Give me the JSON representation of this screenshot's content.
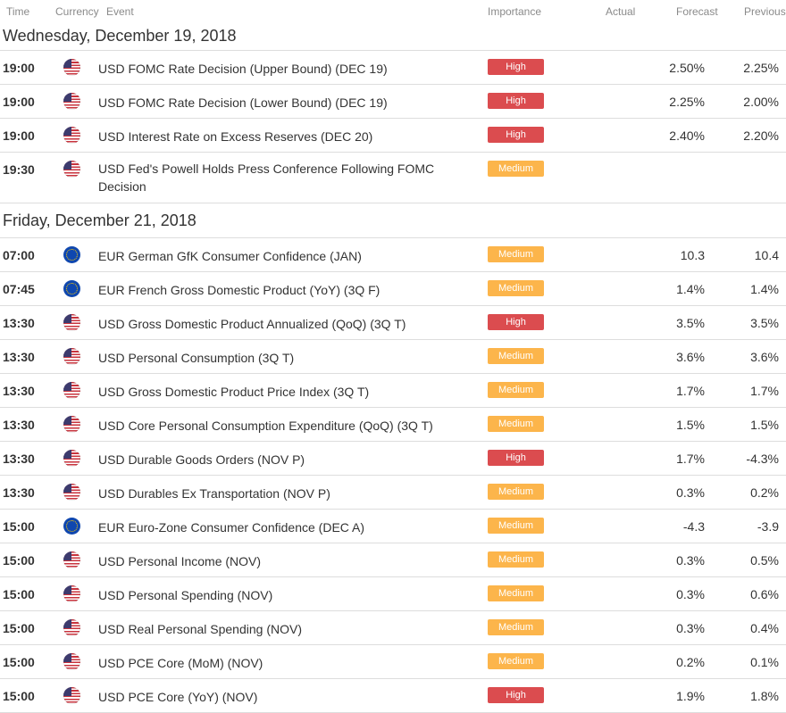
{
  "header": {
    "time": "Time",
    "currency": "Currency",
    "event": "Event",
    "importance": "Importance",
    "actual": "Actual",
    "forecast": "Forecast",
    "previous": "Previous"
  },
  "colors": {
    "high": "#db4c4f",
    "medium": "#fcb54b"
  },
  "days": [
    {
      "heading": "Wednesday, December 19, 2018",
      "events": [
        {
          "time": "19:00",
          "flag_icon": "us-flag-icon",
          "event": "USD FOMC Rate Decision (Upper Bound) (DEC 19)",
          "importance": "High",
          "actual": "",
          "forecast": "2.50%",
          "previous": "2.25%"
        },
        {
          "time": "19:00",
          "flag_icon": "us-flag-icon",
          "event": "USD FOMC Rate Decision (Lower Bound) (DEC 19)",
          "importance": "High",
          "actual": "",
          "forecast": "2.25%",
          "previous": "2.00%"
        },
        {
          "time": "19:00",
          "flag_icon": "us-flag-icon",
          "event": "USD Interest Rate on Excess Reserves (DEC 20)",
          "importance": "High",
          "actual": "",
          "forecast": "2.40%",
          "previous": "2.20%"
        },
        {
          "time": "19:30",
          "flag_icon": "us-flag-icon",
          "event": "USD Fed's Powell Holds Press Conference Following FOMC Decision",
          "importance": "Medium",
          "actual": "",
          "forecast": "",
          "previous": ""
        }
      ]
    },
    {
      "heading": "Friday, December 21, 2018",
      "events": [
        {
          "time": "07:00",
          "flag_icon": "eu-flag-icon",
          "event": "EUR German GfK Consumer Confidence (JAN)",
          "importance": "Medium",
          "actual": "",
          "forecast": "10.3",
          "previous": "10.4"
        },
        {
          "time": "07:45",
          "flag_icon": "eu-flag-icon",
          "event": "EUR French Gross Domestic Product (YoY) (3Q F)",
          "importance": "Medium",
          "actual": "",
          "forecast": "1.4%",
          "previous": "1.4%"
        },
        {
          "time": "13:30",
          "flag_icon": "us-flag-icon",
          "event": "USD Gross Domestic Product Annualized (QoQ) (3Q T)",
          "importance": "High",
          "actual": "",
          "forecast": "3.5%",
          "previous": "3.5%"
        },
        {
          "time": "13:30",
          "flag_icon": "us-flag-icon",
          "event": "USD Personal Consumption (3Q T)",
          "importance": "Medium",
          "actual": "",
          "forecast": "3.6%",
          "previous": "3.6%"
        },
        {
          "time": "13:30",
          "flag_icon": "us-flag-icon",
          "event": "USD Gross Domestic Product Price Index (3Q T)",
          "importance": "Medium",
          "actual": "",
          "forecast": "1.7%",
          "previous": "1.7%"
        },
        {
          "time": "13:30",
          "flag_icon": "us-flag-icon",
          "event": "USD Core Personal Consumption Expenditure (QoQ) (3Q T)",
          "importance": "Medium",
          "actual": "",
          "forecast": "1.5%",
          "previous": "1.5%"
        },
        {
          "time": "13:30",
          "flag_icon": "us-flag-icon",
          "event": "USD Durable Goods Orders (NOV P)",
          "importance": "High",
          "actual": "",
          "forecast": "1.7%",
          "previous": "-4.3%"
        },
        {
          "time": "13:30",
          "flag_icon": "us-flag-icon",
          "event": "USD Durables Ex Transportation (NOV P)",
          "importance": "Medium",
          "actual": "",
          "forecast": "0.3%",
          "previous": "0.2%"
        },
        {
          "time": "15:00",
          "flag_icon": "eu-flag-icon",
          "event": "EUR Euro-Zone Consumer Confidence (DEC A)",
          "importance": "Medium",
          "actual": "",
          "forecast": "-4.3",
          "previous": "-3.9"
        },
        {
          "time": "15:00",
          "flag_icon": "us-flag-icon",
          "event": "USD Personal Income (NOV)",
          "importance": "Medium",
          "actual": "",
          "forecast": "0.3%",
          "previous": "0.5%"
        },
        {
          "time": "15:00",
          "flag_icon": "us-flag-icon",
          "event": "USD Personal Spending (NOV)",
          "importance": "Medium",
          "actual": "",
          "forecast": "0.3%",
          "previous": "0.6%"
        },
        {
          "time": "15:00",
          "flag_icon": "us-flag-icon",
          "event": "USD Real Personal Spending (NOV)",
          "importance": "Medium",
          "actual": "",
          "forecast": "0.3%",
          "previous": "0.4%"
        },
        {
          "time": "15:00",
          "flag_icon": "us-flag-icon",
          "event": "USD PCE Core (MoM) (NOV)",
          "importance": "Medium",
          "actual": "",
          "forecast": "0.2%",
          "previous": "0.1%"
        },
        {
          "time": "15:00",
          "flag_icon": "us-flag-icon",
          "event": "USD PCE Core (YoY) (NOV)",
          "importance": "High",
          "actual": "",
          "forecast": "1.9%",
          "previous": "1.8%"
        }
      ]
    }
  ]
}
